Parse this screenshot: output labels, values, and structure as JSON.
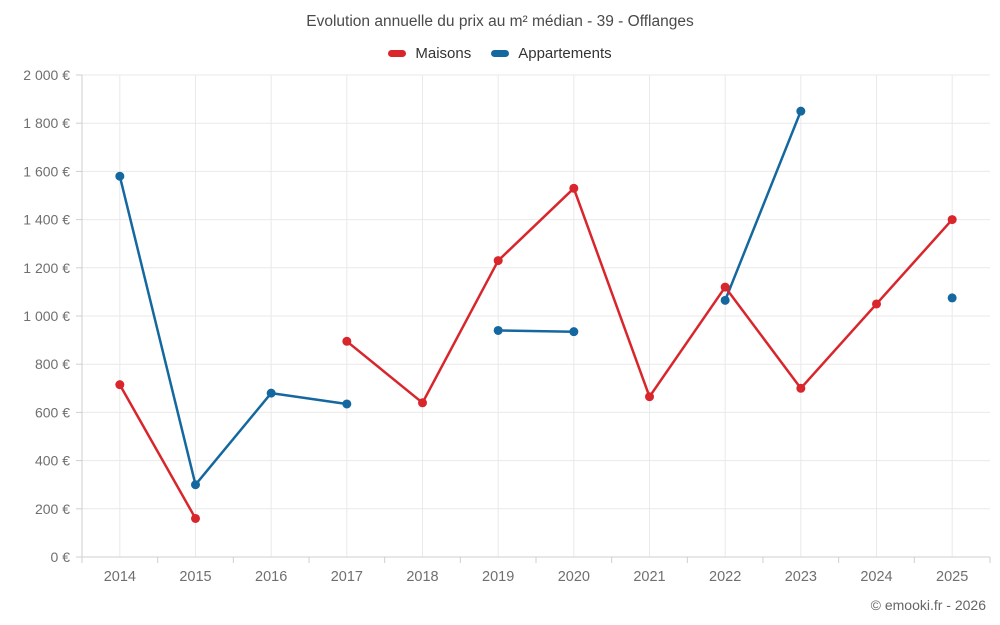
{
  "chart_data": {
    "type": "line",
    "title": "Evolution annuelle du prix au m² médian - 39 - Offlanges",
    "categories": [
      "2014",
      "2015",
      "2016",
      "2017",
      "2018",
      "2019",
      "2020",
      "2021",
      "2022",
      "2023",
      "2024",
      "2025"
    ],
    "series": [
      {
        "name": "Maisons",
        "color": "#d8262c",
        "values": [
          715,
          160,
          null,
          895,
          640,
          1230,
          1530,
          665,
          1120,
          700,
          1050,
          1400
        ]
      },
      {
        "name": "Appartements",
        "color": "#15689f",
        "values": [
          1580,
          300,
          680,
          635,
          null,
          940,
          935,
          null,
          1065,
          1850,
          null,
          1075
        ]
      }
    ],
    "xlabel": "",
    "ylabel": "",
    "ylim": [
      0,
      2000
    ],
    "y_tick_step": 200,
    "y_tick_labels": [
      "0 €",
      "200 €",
      "400 €",
      "600 €",
      "800 €",
      "1 000 €",
      "1 200 €",
      "1 400 €",
      "1 600 €",
      "1 800 €",
      "2 000 €"
    ],
    "grid": true,
    "legend_position": "top",
    "marker_radius": 4.5,
    "line_width": 2.5,
    "credit": "© emooki.fr - 2026"
  },
  "colors": {
    "grid": "#e9e9e9",
    "axis": "#cfcfcf",
    "tick_text": "#6f6f6f",
    "title_text": "#4a4a4a"
  }
}
